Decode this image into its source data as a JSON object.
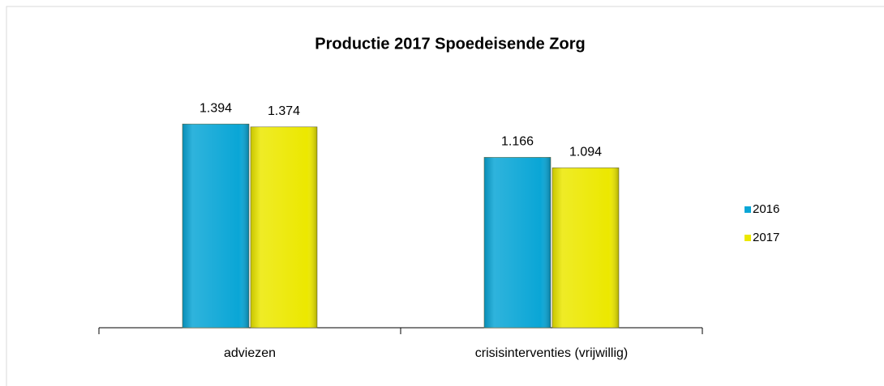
{
  "chart_data": {
    "type": "bar",
    "title": "Productie 2017 Spoedeisende Zorg",
    "categories": [
      "adviezen",
      "crisisinterventies (vrijwillig)"
    ],
    "series": [
      {
        "name": "2016",
        "color": "#0aa6d6",
        "values": [
          1394,
          1166
        ],
        "value_labels": [
          "1.394",
          "1.166"
        ]
      },
      {
        "name": "2017",
        "color": "#ece800",
        "values": [
          1374,
          1094
        ],
        "value_labels": [
          "1.374",
          "1.094"
        ]
      }
    ],
    "ylim": [
      0,
      1600
    ],
    "legend": "right"
  }
}
